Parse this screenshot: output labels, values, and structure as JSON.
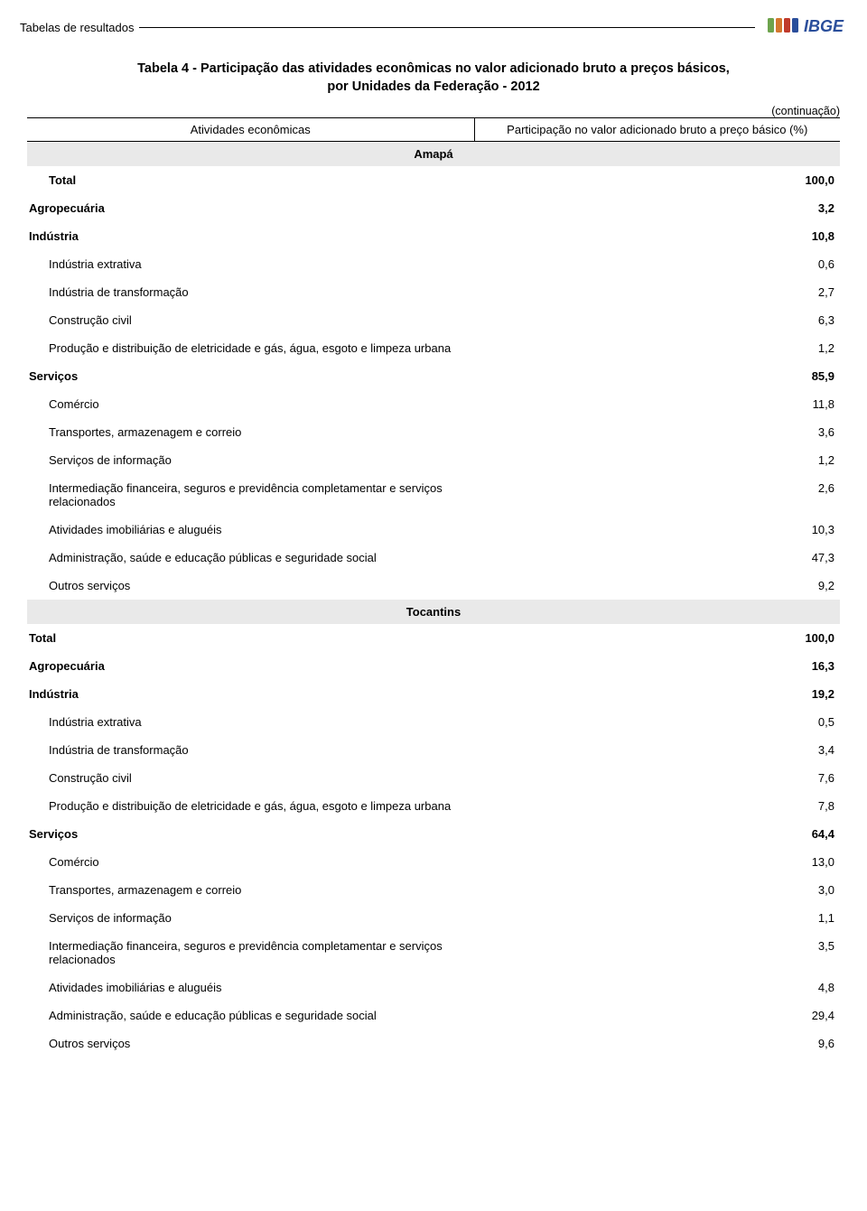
{
  "header": {
    "section_label": "Tabelas de resultados",
    "logo_colors": {
      "green": "#6da34d",
      "orange": "#d4772e",
      "red": "#c03a2b",
      "blue": "#2a4e9b",
      "text": "#2a4e9b"
    },
    "logo_text": "IBGE"
  },
  "title": {
    "line1": "Tabela 4 - Participação das atividades econômicas no valor adicionado bruto a preços básicos,",
    "line2": "por Unidades da Federação - 2012"
  },
  "continuation": "(continuação)",
  "columns": {
    "left": "Atividades econômicas",
    "right": "Participação no valor adicionado bruto a preço básico (%)"
  },
  "states": [
    {
      "name": "Amapá",
      "rows": [
        {
          "label": "Total",
          "value": "100,0",
          "indent": 1,
          "bold": true
        },
        {
          "label": "Agropecuária",
          "value": "3,2",
          "indent": 0,
          "bold": true
        },
        {
          "label": "Indústria",
          "value": "10,8",
          "indent": 0,
          "bold": true
        },
        {
          "label": "Indústria extrativa",
          "value": "0,6",
          "indent": 1,
          "bold": false
        },
        {
          "label": "Indústria de transformação",
          "value": "2,7",
          "indent": 1,
          "bold": false
        },
        {
          "label": "Construção civil",
          "value": "6,3",
          "indent": 1,
          "bold": false
        },
        {
          "label": "Produção e distribuição de eletricidade e gás, água, esgoto e limpeza urbana",
          "value": "1,2",
          "indent": 1,
          "bold": false
        },
        {
          "label": "Serviços",
          "value": "85,9",
          "indent": 0,
          "bold": true
        },
        {
          "label": "Comércio",
          "value": "11,8",
          "indent": 1,
          "bold": false
        },
        {
          "label": "Transportes, armazenagem e correio",
          "value": "3,6",
          "indent": 1,
          "bold": false
        },
        {
          "label": "Serviços de informação",
          "value": "1,2",
          "indent": 1,
          "bold": false
        },
        {
          "label": "Intermediação financeira, seguros e previdência completamentar e serviços relacionados",
          "value": "2,6",
          "indent": 1,
          "bold": false
        },
        {
          "label": "Atividades imobiliárias e aluguéis",
          "value": "10,3",
          "indent": 1,
          "bold": false
        },
        {
          "label": "Administração, saúde e educação públicas e seguridade social",
          "value": "47,3",
          "indent": 1,
          "bold": false
        },
        {
          "label": "Outros serviços",
          "value": "9,2",
          "indent": 1,
          "bold": false
        }
      ]
    },
    {
      "name": "Tocantins",
      "rows": [
        {
          "label": "Total",
          "value": "100,0",
          "indent": 0,
          "bold": true
        },
        {
          "label": "Agropecuária",
          "value": "16,3",
          "indent": 0,
          "bold": true
        },
        {
          "label": "Indústria",
          "value": "19,2",
          "indent": 0,
          "bold": true
        },
        {
          "label": "Indústria extrativa",
          "value": "0,5",
          "indent": 1,
          "bold": false
        },
        {
          "label": "Indústria de transformação",
          "value": "3,4",
          "indent": 1,
          "bold": false
        },
        {
          "label": "Construção civil",
          "value": "7,6",
          "indent": 1,
          "bold": false
        },
        {
          "label": "Produção e distribuição de eletricidade e gás, água, esgoto e limpeza urbana",
          "value": "7,8",
          "indent": 1,
          "bold": false
        },
        {
          "label": "Serviços",
          "value": "64,4",
          "indent": 0,
          "bold": true
        },
        {
          "label": "Comércio",
          "value": "13,0",
          "indent": 1,
          "bold": false
        },
        {
          "label": "Transportes, armazenagem e correio",
          "value": "3,0",
          "indent": 1,
          "bold": false
        },
        {
          "label": "Serviços de informação",
          "value": "1,1",
          "indent": 1,
          "bold": false
        },
        {
          "label": "Intermediação financeira, seguros e previdência completamentar e serviços relacionados",
          "value": "3,5",
          "indent": 1,
          "bold": false
        },
        {
          "label": "Atividades imobiliárias e aluguéis",
          "value": "4,8",
          "indent": 1,
          "bold": false
        },
        {
          "label": "Administração, saúde e educação públicas e seguridade social",
          "value": "29,4",
          "indent": 1,
          "bold": false
        },
        {
          "label": "Outros serviços",
          "value": "9,6",
          "indent": 1,
          "bold": false
        }
      ]
    }
  ]
}
